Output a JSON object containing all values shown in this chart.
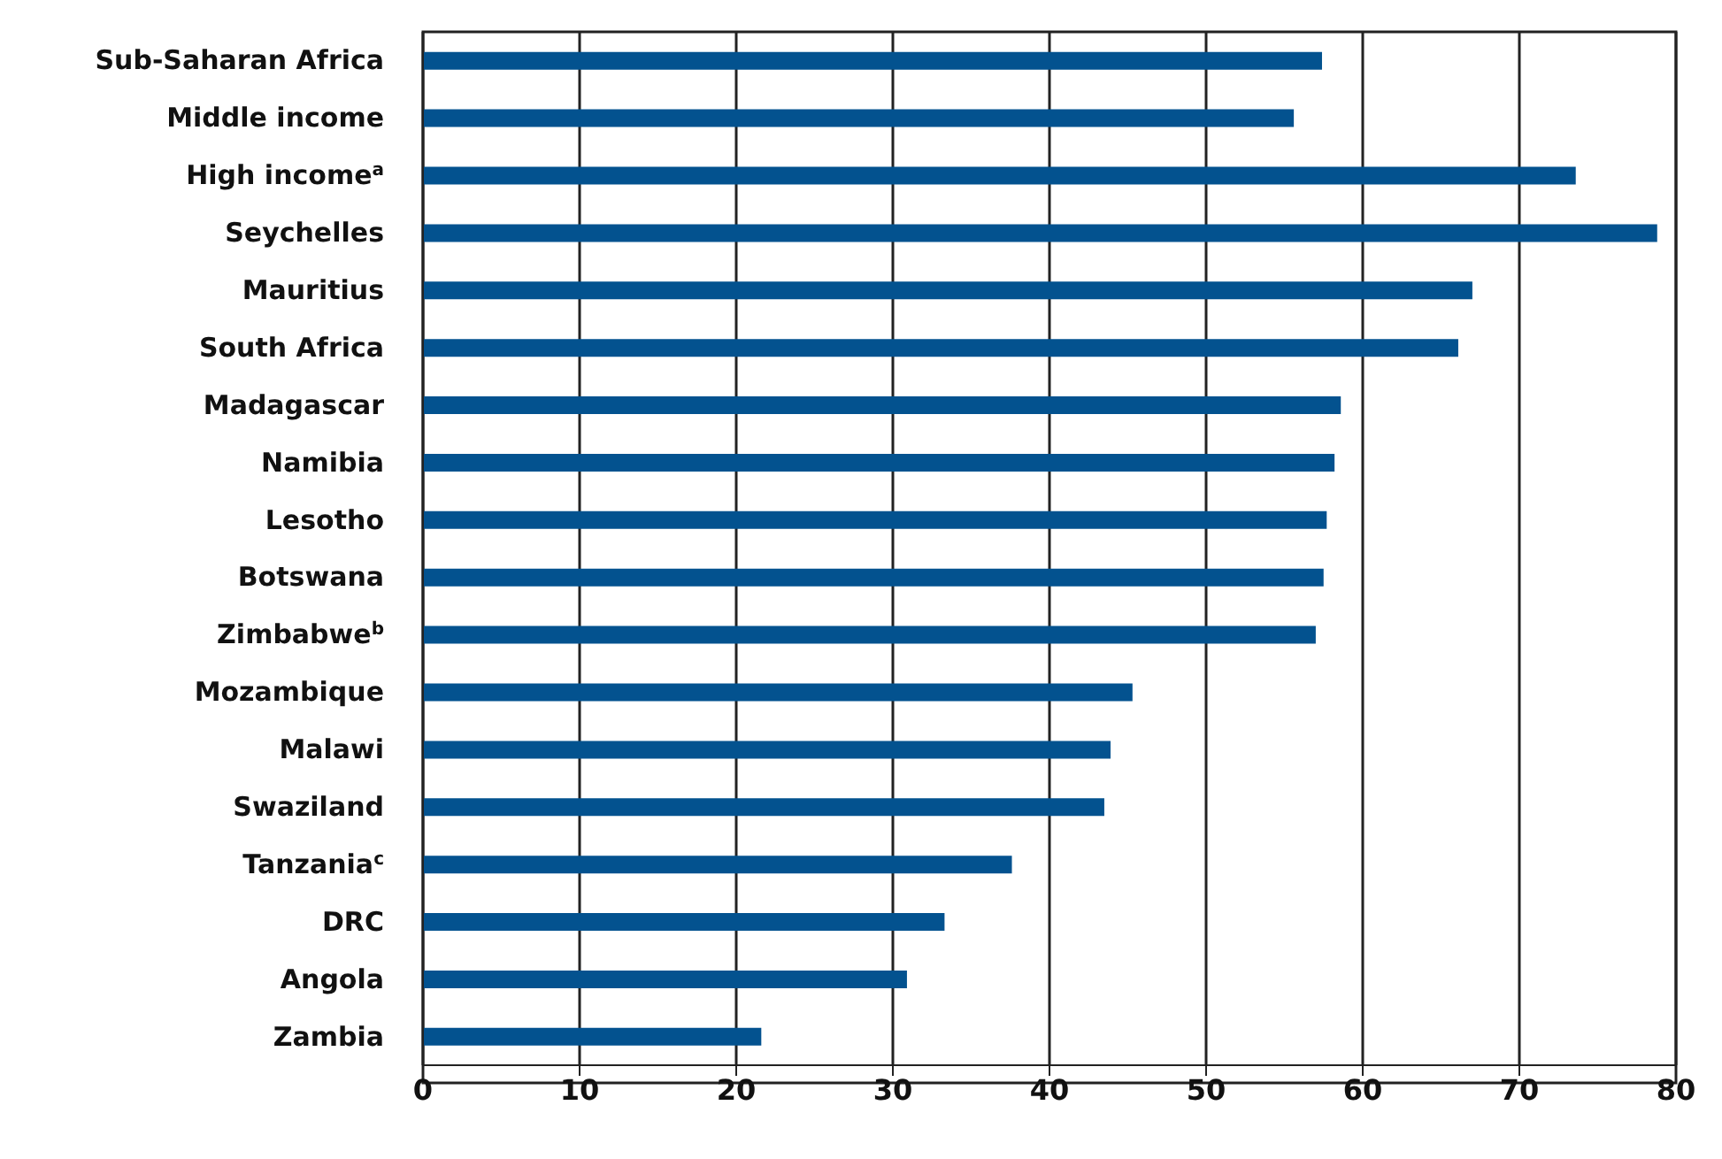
{
  "chart_data": {
    "type": "bar",
    "orientation": "horizontal",
    "categories": [
      "Sub-Saharan Africa",
      "Middle income",
      "High income$^{a}$",
      "Seychelles",
      "Mauritius",
      "South Africa",
      "Madagascar",
      "Namibia",
      "Lesotho",
      "Botswana",
      "Zimbabwe$^{b}$",
      "Mozambique",
      "Malawi",
      "Swaziland",
      "Tanzania$^{c}$",
      "DRC",
      "Angola",
      "Zambia"
    ],
    "values": [
      57.4,
      55.6,
      73.6,
      78.8,
      67.0,
      66.1,
      58.6,
      58.2,
      57.7,
      57.5,
      57.0,
      45.3,
      43.9,
      43.5,
      37.6,
      33.3,
      30.9,
      21.6
    ],
    "color": "#03528f",
    "xlim": [
      0,
      80
    ],
    "xticks": [
      0,
      10,
      20,
      30,
      40,
      50,
      60,
      70,
      80
    ],
    "grid": "x"
  }
}
